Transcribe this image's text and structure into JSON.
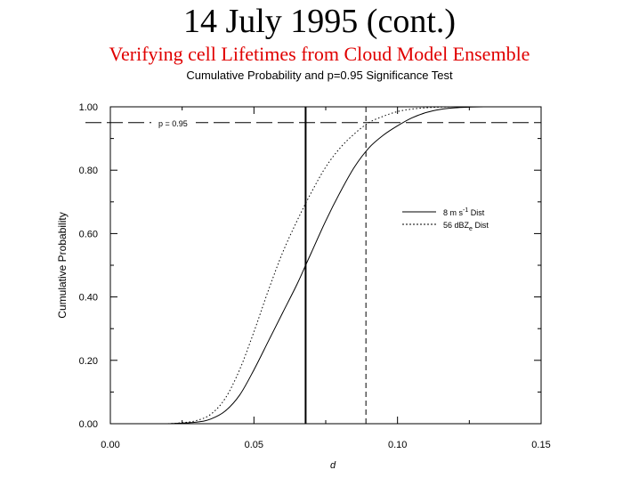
{
  "slide": {
    "title": "14 July 1995 (cont.)",
    "subtitle": "Verifying cell Lifetimes from Cloud Model Ensemble",
    "subsubtitle": "Cumulative Probability and p=0.95 Significance Test",
    "subtitle_color": "#e00000"
  },
  "chart_data": {
    "type": "line",
    "title": "Cumulative Probability and p=0.95 Significance Test",
    "xlabel": "d",
    "ylabel": "Cumulative Probability",
    "xlim": [
      0,
      0.15
    ],
    "ylim": [
      0,
      1.0
    ],
    "xticks": [
      0.0,
      0.05,
      0.1,
      0.15
    ],
    "xtick_labels": [
      "0.00",
      "0.05",
      "0.10",
      "0.15"
    ],
    "yticks": [
      0.0,
      0.2,
      0.4,
      0.6,
      0.8,
      1.0
    ],
    "ytick_labels": [
      "0.00",
      "0.20",
      "0.40",
      "0.60",
      "0.80",
      "1.00"
    ],
    "grid": false,
    "legend_position": "right",
    "series": [
      {
        "name": "8 m s⁻¹ Dist",
        "name_main": "8 m s",
        "name_sup": "-1",
        "name_tail": " Dist",
        "style": "solid",
        "x": [
          0.02,
          0.03,
          0.035,
          0.04,
          0.045,
          0.05,
          0.055,
          0.06,
          0.065,
          0.068,
          0.07,
          0.075,
          0.08,
          0.085,
          0.09,
          0.095,
          0.1,
          0.105,
          0.11,
          0.115,
          0.12,
          0.125,
          0.13,
          0.14
        ],
        "y": [
          0.0,
          0.005,
          0.015,
          0.04,
          0.09,
          0.17,
          0.26,
          0.35,
          0.44,
          0.5,
          0.54,
          0.64,
          0.73,
          0.81,
          0.87,
          0.91,
          0.94,
          0.965,
          0.982,
          0.992,
          0.997,
          0.999,
          1.0,
          1.0
        ]
      },
      {
        "name": "56 dBZe Dist",
        "name_main": "56 dBZ",
        "name_sub": "e",
        "name_tail": " Dist",
        "style": "dotted",
        "x": [
          0.02,
          0.025,
          0.03,
          0.035,
          0.04,
          0.045,
          0.05,
          0.055,
          0.06,
          0.065,
          0.07,
          0.075,
          0.08,
          0.085,
          0.09,
          0.095,
          0.1,
          0.105,
          0.11,
          0.115,
          0.12,
          0.13
        ],
        "y": [
          0.0,
          0.003,
          0.01,
          0.03,
          0.08,
          0.17,
          0.29,
          0.42,
          0.54,
          0.64,
          0.73,
          0.81,
          0.87,
          0.915,
          0.95,
          0.97,
          0.985,
          0.993,
          0.997,
          0.999,
          1.0,
          1.0
        ]
      }
    ],
    "annotations": [
      {
        "type": "hline",
        "y": 0.95,
        "style": "dashed",
        "label": "p = 0.95"
      },
      {
        "type": "vline",
        "x": 0.068,
        "style": "solid-thick"
      },
      {
        "type": "vline",
        "x": 0.089,
        "style": "dashed"
      }
    ]
  }
}
